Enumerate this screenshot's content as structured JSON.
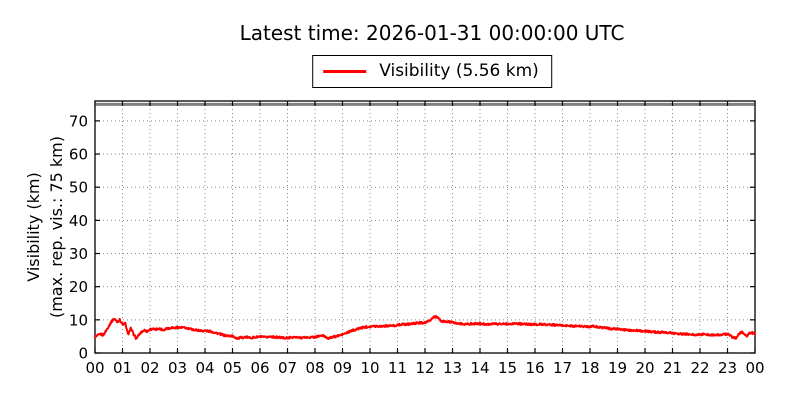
{
  "header": {
    "title": "Latest time: 2026-01-31 00:00:00 UTC"
  },
  "legend": {
    "label": "Visibility (5.56 km)",
    "line_color": "#ff0000"
  },
  "chart_data": {
    "type": "line",
    "title": "Latest time: 2026-01-31 00:00:00 UTC",
    "ylabel_line1": "Visibility (km)",
    "ylabel_line2": "(max. rep. vis.: 75 km)",
    "xlabel": "",
    "xlim": [
      0,
      24
    ],
    "ylim": [
      0,
      76
    ],
    "x_ticks": [
      0,
      1,
      2,
      3,
      4,
      5,
      6,
      7,
      8,
      9,
      10,
      11,
      12,
      13,
      14,
      15,
      16,
      17,
      18,
      19,
      20,
      21,
      22,
      23,
      24
    ],
    "x_tick_labels": [
      "00",
      "01",
      "02",
      "03",
      "04",
      "05",
      "06",
      "07",
      "08",
      "09",
      "10",
      "11",
      "12",
      "13",
      "14",
      "15",
      "16",
      "17",
      "18",
      "19",
      "20",
      "21",
      "22",
      "23",
      "00"
    ],
    "y_ticks": [
      0,
      10,
      20,
      30,
      40,
      50,
      60,
      70
    ],
    "y_tick_labels": [
      "0",
      "10",
      "20",
      "30",
      "40",
      "50",
      "60",
      "70"
    ],
    "grid": "dotted",
    "legend_position": "upper center, above axes",
    "background": "#ffffff",
    "max_reported_visibility_km": 75,
    "max_line_color": "#808080",
    "latest_value_km": 5.56,
    "noise_km": 0.3,
    "series": [
      {
        "name": "Visibility",
        "color": "#ff0000",
        "units": "km",
        "x_units": "hour (UTC)",
        "points": [
          [
            0,
            4.8
          ],
          [
            0.1,
            5.3
          ],
          [
            0.2,
            5.7
          ],
          [
            0.3,
            5.4
          ],
          [
            0.4,
            6.7
          ],
          [
            0.5,
            8.1
          ],
          [
            0.6,
            9.5
          ],
          [
            0.7,
            10.4
          ],
          [
            0.8,
            9.4
          ],
          [
            0.9,
            10
          ],
          [
            1,
            8.6
          ],
          [
            1.1,
            8.9
          ],
          [
            1.2,
            5.6
          ],
          [
            1.3,
            7.4
          ],
          [
            1.4,
            5.8
          ],
          [
            1.5,
            4.3
          ],
          [
            1.6,
            5.5
          ],
          [
            1.7,
            6.4
          ],
          [
            1.8,
            6.9
          ],
          [
            1.9,
            6.5
          ],
          [
            2,
            7.1
          ],
          [
            2.1,
            7.3
          ],
          [
            2.2,
            7
          ],
          [
            2.3,
            7.4
          ],
          [
            2.4,
            7.2
          ],
          [
            2.5,
            6.9
          ],
          [
            2.6,
            7.5
          ],
          [
            2.7,
            7.4
          ],
          [
            2.8,
            7.7
          ],
          [
            2.9,
            7.5
          ],
          [
            3,
            7.8
          ],
          [
            3.1,
            7.6
          ],
          [
            3.2,
            7.7
          ],
          [
            3.3,
            7.5
          ],
          [
            3.4,
            7.3
          ],
          [
            3.5,
            7.2
          ],
          [
            3.6,
            7
          ],
          [
            3.7,
            6.9
          ],
          [
            3.8,
            6.8
          ],
          [
            3.9,
            6.7
          ],
          [
            4,
            6.7
          ],
          [
            4.2,
            6.5
          ],
          [
            4.3,
            6.3
          ],
          [
            4.4,
            6.1
          ],
          [
            4.5,
            5.8
          ],
          [
            4.6,
            5.6
          ],
          [
            4.7,
            5.3
          ],
          [
            4.8,
            5.2
          ],
          [
            5,
            5.1
          ],
          [
            5.1,
            4.7
          ],
          [
            5.2,
            4.4
          ],
          [
            5.3,
            4.6
          ],
          [
            5.4,
            4.7
          ],
          [
            5.5,
            4.8
          ],
          [
            5.6,
            4.6
          ],
          [
            5.8,
            4.7
          ],
          [
            6,
            4.9
          ],
          [
            6.2,
            4.7
          ],
          [
            6.4,
            5
          ],
          [
            6.5,
            4.8
          ],
          [
            6.7,
            4.7
          ],
          [
            6.8,
            4.6
          ],
          [
            7,
            4.5
          ],
          [
            7.2,
            4.8
          ],
          [
            7.4,
            4.6
          ],
          [
            7.6,
            4.7
          ],
          [
            7.8,
            4.7
          ],
          [
            8,
            4.8
          ],
          [
            8.1,
            5
          ],
          [
            8.2,
            5.2
          ],
          [
            8.3,
            5.2
          ],
          [
            8.4,
            4.8
          ],
          [
            8.5,
            4.4
          ],
          [
            8.6,
            4.7
          ],
          [
            8.7,
            4.9
          ],
          [
            8.8,
            5.1
          ],
          [
            8.9,
            5.3
          ],
          [
            9,
            5.6
          ],
          [
            9.1,
            5.9
          ],
          [
            9.2,
            6.2
          ],
          [
            9.3,
            6.6
          ],
          [
            9.4,
            6.9
          ],
          [
            9.5,
            7.1
          ],
          [
            9.6,
            7.4
          ],
          [
            9.8,
            7.8
          ],
          [
            10,
            8
          ],
          [
            10.2,
            8.1
          ],
          [
            10.4,
            8.1
          ],
          [
            10.6,
            8.2
          ],
          [
            10.8,
            8.2
          ],
          [
            11,
            8.4
          ],
          [
            11.1,
            8.6
          ],
          [
            11.3,
            8.7
          ],
          [
            11.5,
            8.8
          ],
          [
            11.7,
            9
          ],
          [
            12,
            9.2
          ],
          [
            12.1,
            9.4
          ],
          [
            12.2,
            9.9
          ],
          [
            12.3,
            10.8
          ],
          [
            12.4,
            11
          ],
          [
            12.5,
            10.3
          ],
          [
            12.6,
            9.6
          ],
          [
            12.7,
            9.4
          ],
          [
            12.8,
            9.5
          ],
          [
            13,
            9.2
          ],
          [
            13.2,
            8.9
          ],
          [
            13.4,
            8.7
          ],
          [
            13.6,
            8.8
          ],
          [
            13.8,
            8.8
          ],
          [
            14,
            8.8
          ],
          [
            14.3,
            8.7
          ],
          [
            14.6,
            8.8
          ],
          [
            15,
            8.8
          ],
          [
            15.3,
            8.9
          ],
          [
            15.6,
            8.7
          ],
          [
            16,
            8.6
          ],
          [
            16.2,
            8.7
          ],
          [
            16.4,
            8.6
          ],
          [
            16.6,
            8.5
          ],
          [
            16.8,
            8.4
          ],
          [
            17,
            8.3
          ],
          [
            17.2,
            8.2
          ],
          [
            17.4,
            8.1
          ],
          [
            17.6,
            8.1
          ],
          [
            17.8,
            8
          ],
          [
            18,
            8
          ],
          [
            18.1,
            8.1
          ],
          [
            18.3,
            7.8
          ],
          [
            18.5,
            7.6
          ],
          [
            18.7,
            7.4
          ],
          [
            19,
            7.2
          ],
          [
            19.2,
            7
          ],
          [
            19.4,
            6.9
          ],
          [
            19.6,
            6.8
          ],
          [
            19.8,
            6.7
          ],
          [
            20,
            6.6
          ],
          [
            20.2,
            6.4
          ],
          [
            20.4,
            6.3
          ],
          [
            20.6,
            6.2
          ],
          [
            20.8,
            6.1
          ],
          [
            21,
            6
          ],
          [
            21.2,
            5.8
          ],
          [
            21.4,
            5.7
          ],
          [
            21.6,
            5.6
          ],
          [
            21.8,
            5.5
          ],
          [
            22,
            5.6
          ],
          [
            22.2,
            5.6
          ],
          [
            22.4,
            5.5
          ],
          [
            22.6,
            5.4
          ],
          [
            22.8,
            5.5
          ],
          [
            23,
            5.7
          ],
          [
            23.1,
            5.3
          ],
          [
            23.2,
            4.7
          ],
          [
            23.3,
            4.4
          ],
          [
            23.4,
            5.5
          ],
          [
            23.5,
            6.4
          ],
          [
            23.6,
            5.8
          ],
          [
            23.7,
            5.2
          ],
          [
            23.8,
            5.9
          ],
          [
            23.9,
            6.1
          ],
          [
            24,
            5.56
          ]
        ]
      }
    ]
  }
}
